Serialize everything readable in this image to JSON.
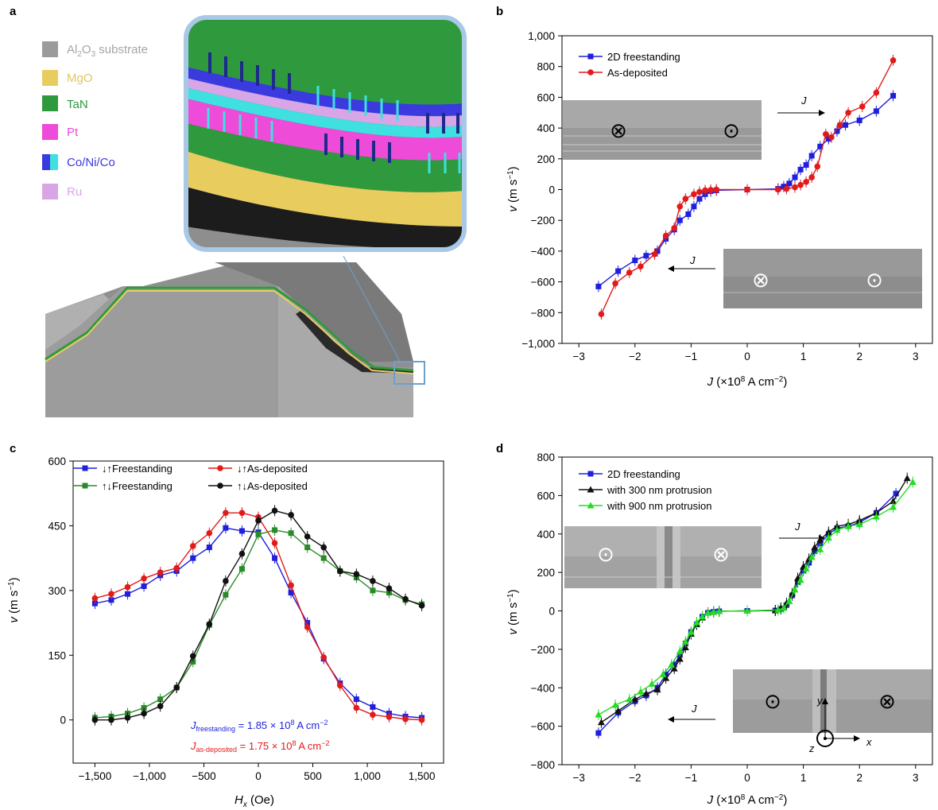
{
  "panel_labels": {
    "a": "a",
    "b": "b",
    "c": "c",
    "d": "d"
  },
  "panel_a": {
    "legend": [
      {
        "label": "Al2O3 substrate",
        "color": "#9b9b9b",
        "text_color": "#a6a6a6"
      },
      {
        "label": "MgO",
        "color": "#e8cd5e",
        "text_color": "#e2c65a"
      },
      {
        "label": "TaN",
        "color": "#2f9a3d",
        "text_color": "#2f9a3d"
      },
      {
        "label": "Pt",
        "color": "#ee4bd8",
        "text_color": "#ee4bd8"
      },
      {
        "label": "Co/Ni/Co",
        "color": "#3a3adf",
        "color2": "#3fe0e0",
        "text_color": "#3a3adf"
      },
      {
        "label": "Ru",
        "color": "#d8a6e6",
        "text_color": "#d8a6e6"
      }
    ]
  },
  "annotations": {
    "J": "J",
    "freestanding_eq": "J_freestanding = 1.85 × 10^8 A cm^−2",
    "asdeposited_eq": "J_as-deposited = 1.75 × 10^8 A cm^−2",
    "axis_x": "x",
    "axis_y": "y",
    "axis_z": "z"
  },
  "chart_data": [
    {
      "panel": "b",
      "type": "line",
      "xlabel": "J (×10^8 A cm^−2)",
      "ylabel": "v (m s^−1)",
      "xlim": [
        -3.3,
        3.3
      ],
      "ylim": [
        -1000,
        1000
      ],
      "xticks": [
        -3,
        -2,
        -1,
        0,
        1,
        2,
        3
      ],
      "xtick_labels": [
        "−3",
        "−2",
        "−1",
        "0",
        "1",
        "2",
        "3"
      ],
      "yticks": [
        -1000,
        -800,
        -600,
        -400,
        -200,
        0,
        200,
        400,
        600,
        800,
        1000
      ],
      "ytick_labels": [
        "−1,000",
        "−800",
        "−600",
        "−400",
        "−200",
        "0",
        "200",
        "400",
        "600",
        "800",
        "1,000"
      ],
      "legend_position": "top-left",
      "series": [
        {
          "name": "2D freestanding",
          "color": "#1f1fdd",
          "marker": "square",
          "x": [
            -2.65,
            -2.3,
            -2.0,
            -1.8,
            -1.6,
            -1.45,
            -1.3,
            -1.2,
            -1.05,
            -0.95,
            -0.85,
            -0.75,
            -0.65,
            -0.55,
            0.0,
            0.55,
            0.65,
            0.75,
            0.85,
            0.95,
            1.05,
            1.15,
            1.3,
            1.45,
            1.6,
            1.75,
            2.0,
            2.3,
            2.6
          ],
          "y": [
            -630,
            -530,
            -460,
            -430,
            -400,
            -320,
            -260,
            -200,
            -160,
            -110,
            -60,
            -30,
            -10,
            -5,
            0,
            5,
            20,
            40,
            80,
            130,
            160,
            220,
            280,
            330,
            380,
            420,
            450,
            510,
            610
          ]
        },
        {
          "name": "As-deposited",
          "color": "#e21a1a",
          "marker": "circle",
          "x": [
            -2.6,
            -2.35,
            -2.1,
            -1.9,
            -1.65,
            -1.45,
            -1.3,
            -1.2,
            -1.1,
            -0.95,
            -0.85,
            -0.75,
            -0.65,
            -0.55,
            0.0,
            0.55,
            0.7,
            0.85,
            0.95,
            1.05,
            1.15,
            1.25,
            1.4,
            1.5,
            1.65,
            1.8,
            2.05,
            2.3,
            2.6
          ],
          "y": [
            -810,
            -610,
            -540,
            -500,
            -420,
            -300,
            -250,
            -110,
            -60,
            -30,
            -15,
            -5,
            -2,
            0,
            0,
            0,
            5,
            15,
            30,
            50,
            80,
            150,
            360,
            340,
            420,
            500,
            540,
            630,
            840
          ]
        }
      ]
    },
    {
      "panel": "c",
      "type": "line",
      "xlabel": "H_x (Oe)",
      "ylabel": "v (m s^−1)",
      "xlim": [
        -1700,
        1700
      ],
      "ylim": [
        -100,
        600
      ],
      "xticks": [
        -1500,
        -1000,
        -500,
        0,
        500,
        1000,
        1500
      ],
      "xtick_labels": [
        "−1,500",
        "−1,000",
        "−500",
        "0",
        "500",
        "1,000",
        "1,500"
      ],
      "yticks": [
        0,
        150,
        300,
        450,
        600
      ],
      "ytick_labels": [
        "0",
        "150",
        "300",
        "450",
        "600"
      ],
      "legend_position": "top",
      "series": [
        {
          "name": "↓↑Freestanding",
          "color": "#1f1fdd",
          "marker": "square",
          "x": [
            -1500,
            -1350,
            -1200,
            -1050,
            -900,
            -750,
            -600,
            -450,
            -300,
            -150,
            0,
            150,
            300,
            450,
            600,
            750,
            900,
            1050,
            1200,
            1350,
            1500
          ],
          "y": [
            270,
            278,
            292,
            310,
            335,
            345,
            375,
            400,
            445,
            438,
            435,
            375,
            295,
            225,
            142,
            85,
            48,
            30,
            15,
            8,
            5
          ]
        },
        {
          "name": "↓↑As-deposited",
          "color": "#e21a1a",
          "marker": "circle",
          "x": [
            -1500,
            -1350,
            -1200,
            -1050,
            -900,
            -750,
            -600,
            -450,
            -300,
            -150,
            0,
            150,
            300,
            450,
            600,
            750,
            900,
            1050,
            1200,
            1350,
            1500
          ],
          "y": [
            282,
            292,
            308,
            328,
            342,
            352,
            403,
            433,
            480,
            480,
            470,
            410,
            312,
            215,
            145,
            80,
            28,
            12,
            7,
            2,
            0
          ]
        },
        {
          "name": "↑↓Freestanding",
          "color": "#2a8a2a",
          "marker": "square",
          "x": [
            -1500,
            -1350,
            -1200,
            -1050,
            -900,
            -750,
            -600,
            -450,
            -300,
            -150,
            0,
            150,
            300,
            450,
            600,
            750,
            900,
            1050,
            1200,
            1350,
            1500
          ],
          "y": [
            5,
            8,
            15,
            28,
            48,
            75,
            135,
            220,
            290,
            350,
            430,
            440,
            433,
            400,
            375,
            345,
            330,
            300,
            295,
            278,
            268
          ]
        },
        {
          "name": "↑↓As-deposited",
          "color": "#111111",
          "marker": "circle",
          "x": [
            -1500,
            -1350,
            -1200,
            -1050,
            -900,
            -750,
            -600,
            -450,
            -300,
            -150,
            0,
            150,
            300,
            450,
            600,
            750,
            900,
            1050,
            1200,
            1350,
            1500
          ],
          "y": [
            0,
            0,
            5,
            15,
            32,
            75,
            148,
            222,
            322,
            385,
            462,
            485,
            475,
            425,
            400,
            345,
            338,
            322,
            305,
            280,
            265
          ]
        }
      ]
    },
    {
      "panel": "d",
      "type": "line",
      "xlabel": "J (×10^8 A cm^−2)",
      "ylabel": "v (m s^−1)",
      "xlim": [
        -3.3,
        3.3
      ],
      "ylim": [
        -800,
        800
      ],
      "xticks": [
        -3,
        -2,
        -1,
        0,
        1,
        2,
        3
      ],
      "xtick_labels": [
        "−3",
        "−2",
        "−1",
        "0",
        "1",
        "2",
        "3"
      ],
      "yticks": [
        -800,
        -600,
        -400,
        -200,
        0,
        200,
        400,
        600,
        800
      ],
      "ytick_labels": [
        "−800",
        "−600",
        "−400",
        "−200",
        "0",
        "200",
        "400",
        "600",
        "800"
      ],
      "legend_position": "top-left",
      "series": [
        {
          "name": "2D freestanding",
          "color": "#1f1fdd",
          "marker": "square",
          "x": [
            -2.65,
            -2.3,
            -2.0,
            -1.8,
            -1.6,
            -1.45,
            -1.3,
            -1.2,
            -1.1,
            -1.0,
            -0.9,
            -0.8,
            -0.7,
            -0.6,
            -0.5,
            0.0,
            0.5,
            0.6,
            0.7,
            0.8,
            0.9,
            1.0,
            1.1,
            1.2,
            1.3,
            1.45,
            1.6,
            1.8,
            2.0,
            2.3,
            2.65
          ],
          "y": [
            -635,
            -530,
            -470,
            -440,
            -400,
            -330,
            -280,
            -230,
            -170,
            -110,
            -70,
            -30,
            -10,
            -5,
            -2,
            0,
            2,
            10,
            30,
            80,
            150,
            210,
            250,
            310,
            350,
            400,
            430,
            440,
            460,
            510,
            610
          ]
        },
        {
          "name": "with 300 nm protrusion",
          "color": "#111111",
          "marker": "triangle",
          "x": [
            -2.6,
            -2.3,
            -2.0,
            -1.8,
            -1.6,
            -1.45,
            -1.3,
            -1.2,
            -1.1,
            -1.0,
            -0.9,
            -0.8,
            -0.7,
            -0.6,
            -0.5,
            0.0,
            0.5,
            0.6,
            0.7,
            0.8,
            0.9,
            1.0,
            1.1,
            1.2,
            1.3,
            1.45,
            1.6,
            1.8,
            2.0,
            2.3,
            2.6,
            2.85
          ],
          "y": [
            -580,
            -520,
            -460,
            -430,
            -410,
            -350,
            -300,
            -250,
            -190,
            -120,
            -70,
            -35,
            -10,
            -5,
            -2,
            0,
            2,
            15,
            40,
            90,
            170,
            230,
            270,
            330,
            370,
            410,
            440,
            450,
            470,
            510,
            570,
            690
          ]
        },
        {
          "name": "with 900 nm protrusion",
          "color": "#22dd22",
          "marker": "triangle",
          "x": [
            -2.65,
            -2.35,
            -2.1,
            -1.9,
            -1.7,
            -1.5,
            -1.35,
            -1.2,
            -1.1,
            -1.0,
            -0.9,
            -0.8,
            -0.7,
            -0.6,
            -0.5,
            0.0,
            0.55,
            0.65,
            0.75,
            0.85,
            0.95,
            1.05,
            1.15,
            1.3,
            1.45,
            1.6,
            1.8,
            2.0,
            2.3,
            2.6,
            2.95
          ],
          "y": [
            -540,
            -490,
            -460,
            -420,
            -380,
            -330,
            -280,
            -210,
            -160,
            -110,
            -60,
            -30,
            -10,
            -5,
            -2,
            0,
            5,
            15,
            50,
            110,
            160,
            220,
            280,
            320,
            380,
            420,
            440,
            450,
            490,
            540,
            670
          ]
        }
      ]
    }
  ]
}
